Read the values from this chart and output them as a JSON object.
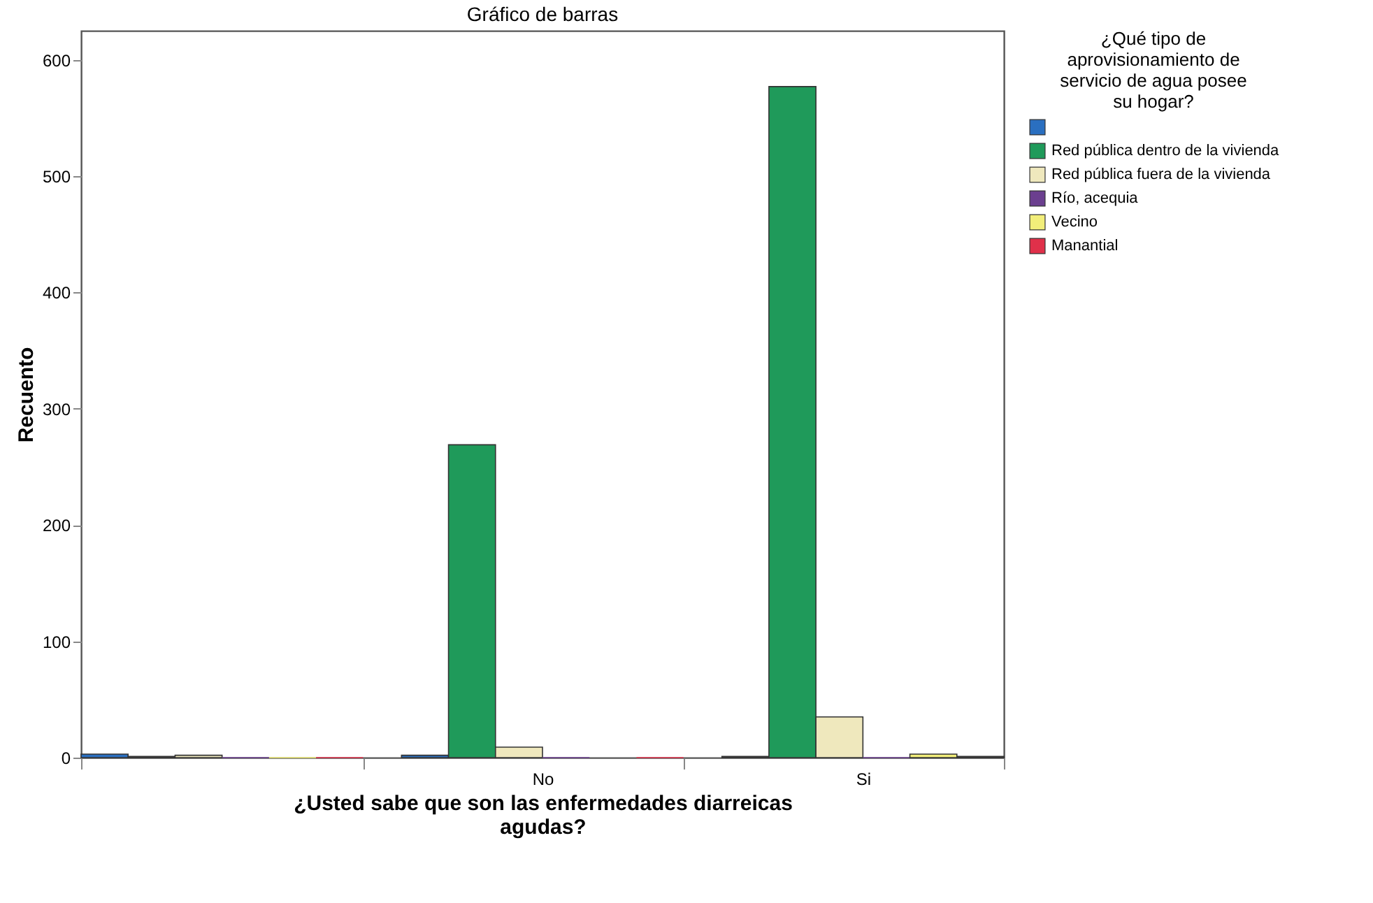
{
  "chart_data": {
    "type": "bar",
    "title": "Gráfico de barras",
    "xlabel": "¿Usted sabe que son las enfermedades diarreicas agudas?",
    "ylabel": "Recuento",
    "legend_title": "¿Qué tipo de aprovisionamiento de servicio de agua posee su hogar?",
    "legend": "top right",
    "grid": false,
    "categories": [
      null,
      "No",
      "Si"
    ],
    "ylim": [
      0,
      625
    ],
    "yticks": [
      0,
      100,
      200,
      300,
      400,
      500,
      600
    ],
    "series": [
      {
        "color": "#2a6fc0",
        "values": [
          3,
          2,
          1
        ]
      },
      {
        "name": "Red pública dentro de la vivienda",
        "color": "#1f9a5a",
        "values": [
          1,
          269,
          577
        ]
      },
      {
        "name": "Red pública fuera de la vivienda",
        "color": "#efe8bd",
        "values": [
          2,
          9,
          35
        ]
      },
      {
        "name": "Río, acequia",
        "color": "#6b3f8f",
        "values": [
          0,
          0,
          0
        ]
      },
      {
        "name": "Vecino",
        "color": "#f2ee7a",
        "values": [
          0,
          null,
          3
        ]
      },
      {
        "name": "Manantial",
        "color": "#e0304a",
        "values": [
          0,
          0,
          1
        ]
      }
    ]
  }
}
